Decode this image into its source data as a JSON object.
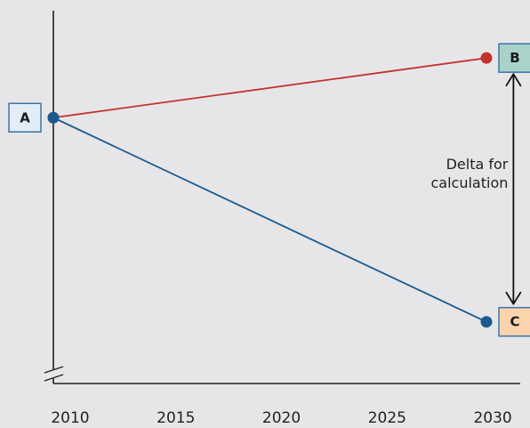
{
  "chart_data": {
    "type": "line",
    "title": "",
    "xlabel": "",
    "ylabel": "",
    "x_ticks": [
      "2010",
      "2015",
      "2020",
      "2025",
      "2030"
    ],
    "xlim": [
      2010,
      2030.5
    ],
    "ylim": [
      0,
      1
    ],
    "y_axis_break": true,
    "grid": false,
    "series": [
      {
        "color": "#c4312d",
        "points": [
          {
            "x": 2010,
            "y": 0.75
          },
          {
            "x": 2030.5,
            "y": 0.94
          }
        ]
      },
      {
        "color": "#1b5a8e",
        "points": [
          {
            "x": 2010,
            "y": 0.75
          },
          {
            "x": 2030.5,
            "y": 0.1
          }
        ]
      }
    ],
    "point_labels": [
      {
        "text": "A",
        "x": 2010,
        "y": 0.75,
        "side": "left",
        "fill": "#e3edf6",
        "border": "#3d74a5"
      },
      {
        "text": "B",
        "x": 2030.5,
        "y": 0.94,
        "side": "right",
        "fill": "#a9d2c9",
        "border": "#3d74a5"
      },
      {
        "text": "C",
        "x": 2030.5,
        "y": 0.1,
        "side": "right",
        "fill": "#fbd4ae",
        "border": "#3d74a5"
      }
    ],
    "annotation": {
      "lines": [
        "Delta for",
        "calculation"
      ],
      "x": 2030.6,
      "from_y": 0.94,
      "to_y": 0.1
    }
  }
}
